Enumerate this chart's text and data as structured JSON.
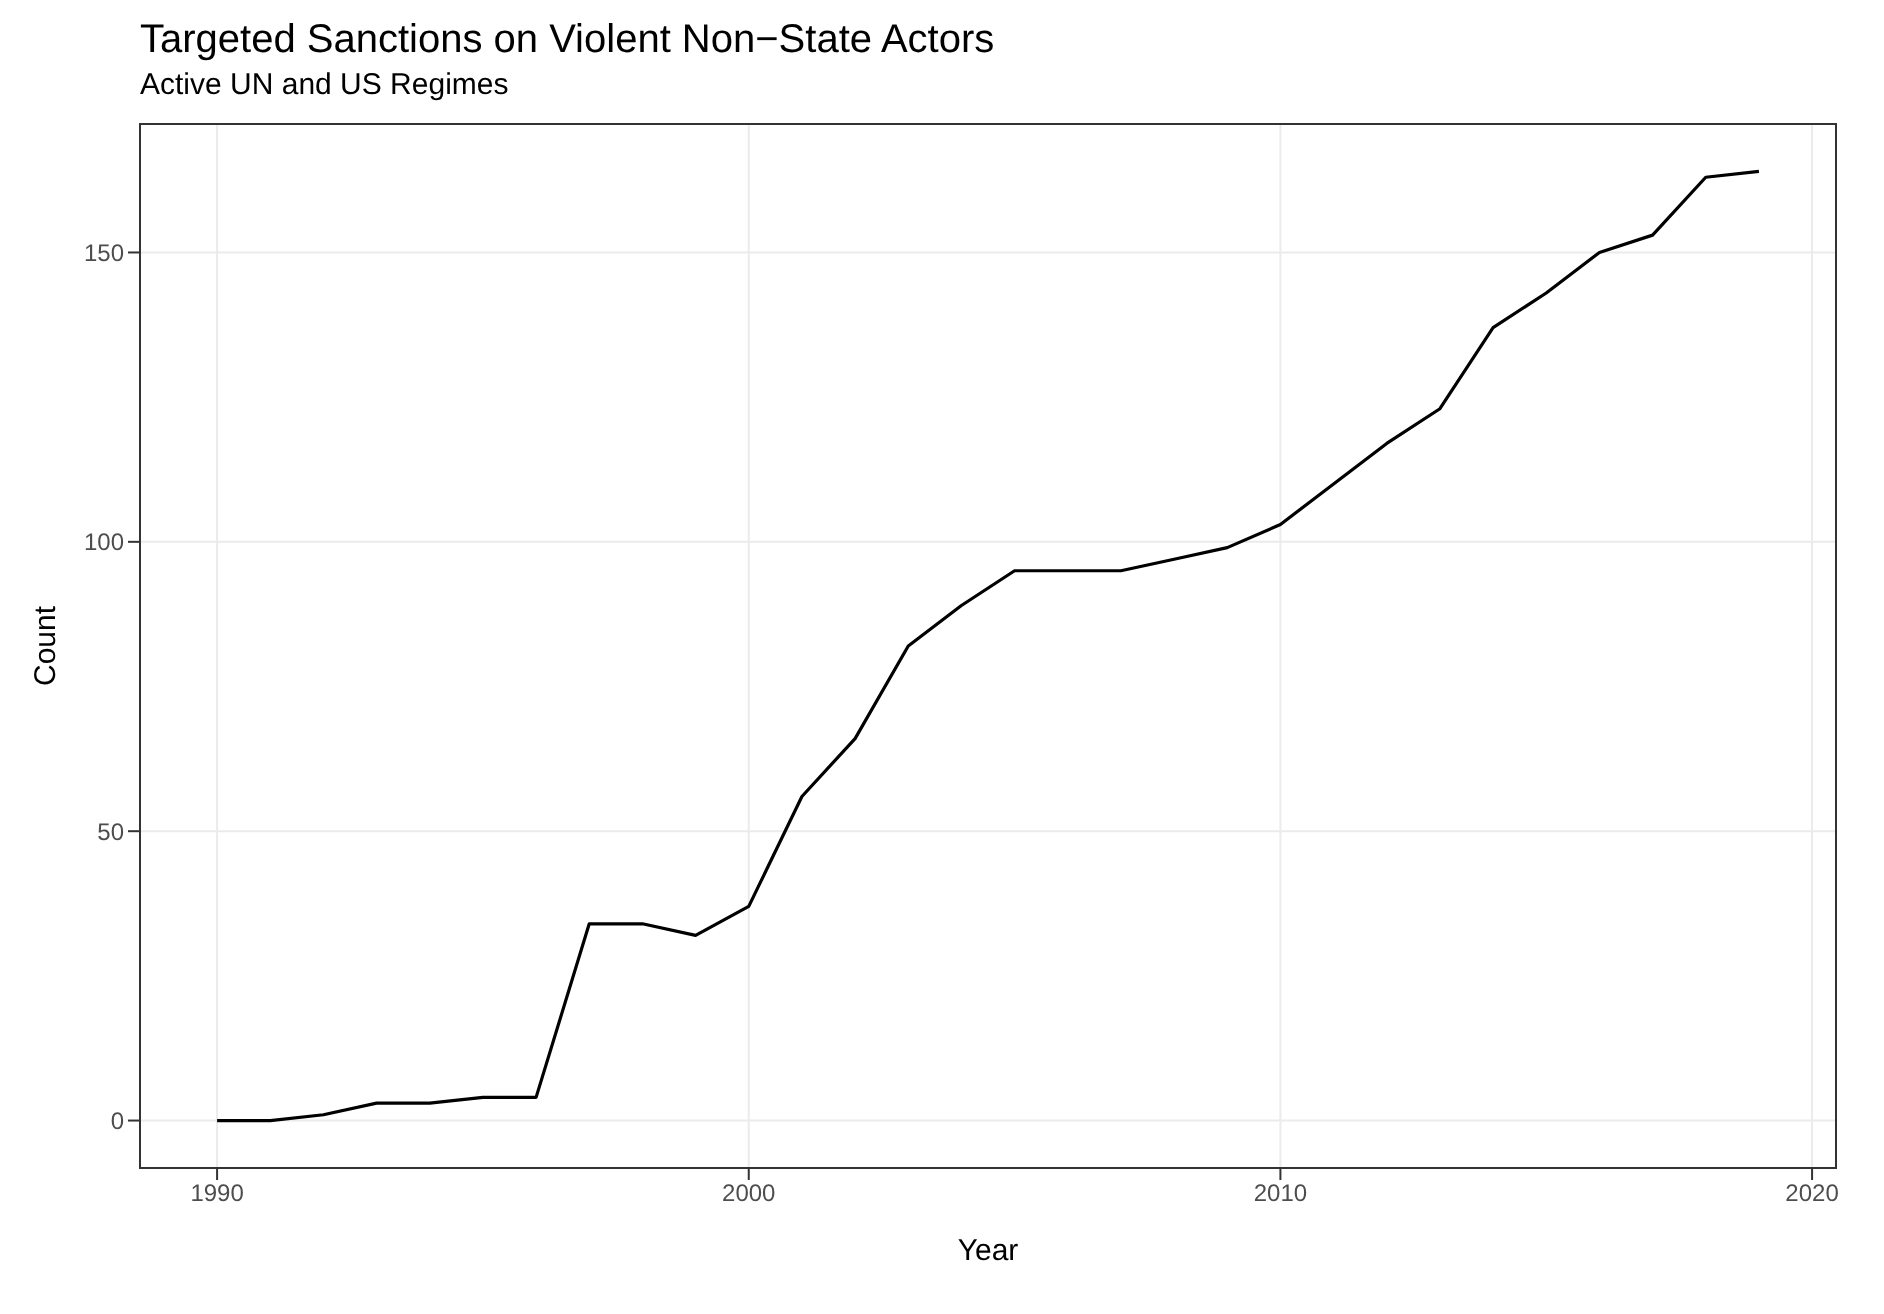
{
  "chart_data": {
    "type": "line",
    "title": "Targeted Sanctions on Violent Non−State Actors",
    "subtitle": "Active UN and US Regimes",
    "xlabel": "Year",
    "ylabel": "Count",
    "x": [
      1990,
      1991,
      1992,
      1993,
      1994,
      1995,
      1996,
      1997,
      1998,
      1999,
      2000,
      2001,
      2002,
      2003,
      2004,
      2005,
      2006,
      2007,
      2008,
      2009,
      2010,
      2011,
      2012,
      2013,
      2014,
      2015,
      2016,
      2017,
      2018,
      2019
    ],
    "series": [
      {
        "color": "#000000",
        "values": [
          0,
          0,
          1,
          3,
          3,
          4,
          4,
          34,
          34,
          32,
          37,
          56,
          66,
          82,
          89,
          95,
          95,
          95,
          97,
          99,
          103,
          110,
          117,
          123,
          137,
          143,
          150,
          153,
          163,
          164
        ]
      }
    ],
    "xlim": [
      1988.55,
      2020.45
    ],
    "xticks": [
      1990,
      2000,
      2010,
      2020
    ],
    "ylim": [
      -8.2,
      172.2
    ],
    "yticks": [
      0,
      50,
      100,
      150
    ],
    "grid": true,
    "legend": false,
    "marker": "none",
    "line_style": "solid"
  }
}
